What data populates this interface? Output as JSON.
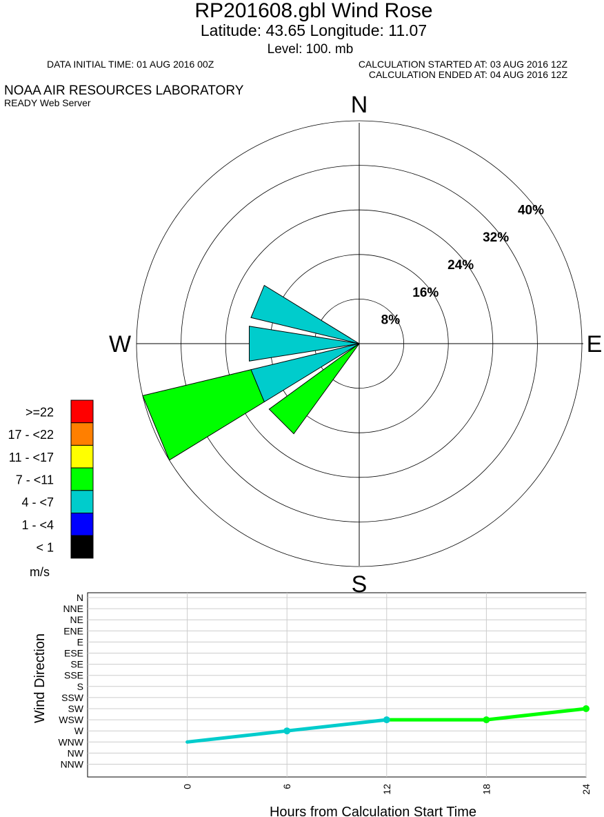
{
  "header": {
    "title": "RP201608.gbl Wind Rose",
    "location": "Latitude: 43.65 Longitude:  11.07",
    "level": "Level:  100. mb",
    "data_initial_time": "DATA INITIAL TIME: 01 AUG 2016 00Z",
    "calc_started": "CALCULATION STARTED AT: 03 AUG 2016 12Z",
    "calc_ended": "CALCULATION ENDED AT: 04 AUG 2016 12Z",
    "org": "NOAA AIR RESOURCES LABORATORY",
    "server": "READY Web Server"
  },
  "chart_data": [
    {
      "type": "wind-rose",
      "compass_labels": {
        "north": "N",
        "east": "E",
        "south": "S",
        "west": "W"
      },
      "rings": [
        8,
        16,
        24,
        32,
        40
      ],
      "ring_labels": [
        "8%",
        "16%",
        "24%",
        "32%",
        "40%"
      ],
      "ring_max": 40,
      "speed_classes": [
        {
          "label": ">=22",
          "color": "#ff0000"
        },
        {
          "label": "17 - <22",
          "color": "#ff7f00"
        },
        {
          "label": "11 - <17",
          "color": "#ffff00"
        },
        {
          "label": "7 - <11",
          "color": "#00ff00"
        },
        {
          "label": "4 - <7",
          "color": "#00cccc"
        },
        {
          "label": "1 - <4",
          "color": "#0000ff"
        },
        {
          "label": "< 1",
          "color": "#000000"
        }
      ],
      "legend_unit": "m/s",
      "petals": [
        {
          "direction": "WNW",
          "segments": [
            {
              "speed_class": "4 - <7",
              "percent": 20
            }
          ]
        },
        {
          "direction": "W",
          "segments": [
            {
              "speed_class": "4 - <7",
              "percent": 20
            }
          ]
        },
        {
          "direction": "WSW",
          "segments": [
            {
              "speed_class": "4 - <7",
              "percent": 20
            },
            {
              "speed_class": "7 - <11",
              "percent": 20
            }
          ]
        },
        {
          "direction": "SW",
          "segments": [
            {
              "speed_class": "7 - <11",
              "percent": 20
            }
          ]
        }
      ]
    },
    {
      "type": "line",
      "title": "",
      "xlabel": "Hours from Calculation Start Time",
      "ylabel": "Wind Direction",
      "x_ticks": [
        0,
        6,
        12,
        18,
        24
      ],
      "xlim": [
        -6,
        24
      ],
      "y_categories": [
        "N",
        "NNE",
        "NE",
        "ENE",
        "E",
        "ESE",
        "SE",
        "SSE",
        "S",
        "SSW",
        "SW",
        "WSW",
        "W",
        "WNW",
        "NW",
        "NNW"
      ],
      "points": [
        {
          "x": 0,
          "y": "WNW",
          "color": "#00cccc",
          "marker": false
        },
        {
          "x": 6,
          "y": "W",
          "color": "#00cccc",
          "marker": true
        },
        {
          "x": 12,
          "y": "WSW",
          "color": "#00cccc",
          "marker": true
        },
        {
          "x": 18,
          "y": "WSW",
          "color": "#00ff00",
          "marker": true
        },
        {
          "x": 24,
          "y": "SW",
          "color": "#00ff00",
          "marker": true
        }
      ]
    }
  ]
}
